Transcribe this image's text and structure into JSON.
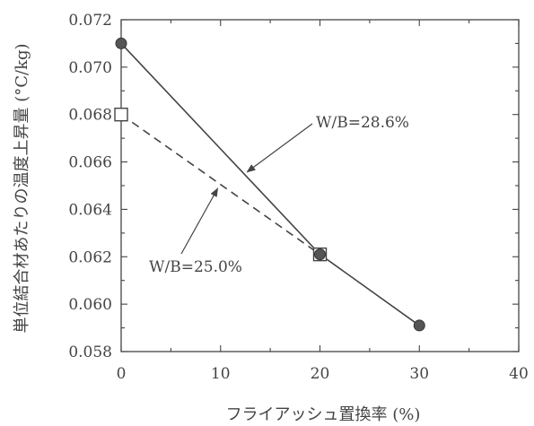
{
  "chart_data": {
    "type": "line",
    "xlabel": "フライアッシュ置換率 (%)",
    "ylabel": "単位結合材あたりの温度上昇量 (°C/kg)",
    "xlim": [
      0,
      40
    ],
    "ylim": [
      0.058,
      0.072
    ],
    "xticks": [
      "0",
      "10",
      "20",
      "30",
      "40"
    ],
    "yticks": [
      "0.058",
      "0.060",
      "0.062",
      "0.064",
      "0.066",
      "0.068",
      "0.070",
      "0.072"
    ],
    "grid": false,
    "series": [
      {
        "name": "W/B=28.6%",
        "marker": "filled-circle",
        "line_style": "solid",
        "x": [
          0,
          20,
          30
        ],
        "y": [
          0.071,
          0.0621,
          0.0591
        ]
      },
      {
        "name": "W/B=25.0%",
        "marker": "open-square",
        "line_style": "dashed",
        "x": [
          0,
          20
        ],
        "y": [
          0.068,
          0.0621
        ]
      }
    ],
    "annotations": [
      "W/B=28.6%",
      "W/B=25.0%"
    ]
  }
}
